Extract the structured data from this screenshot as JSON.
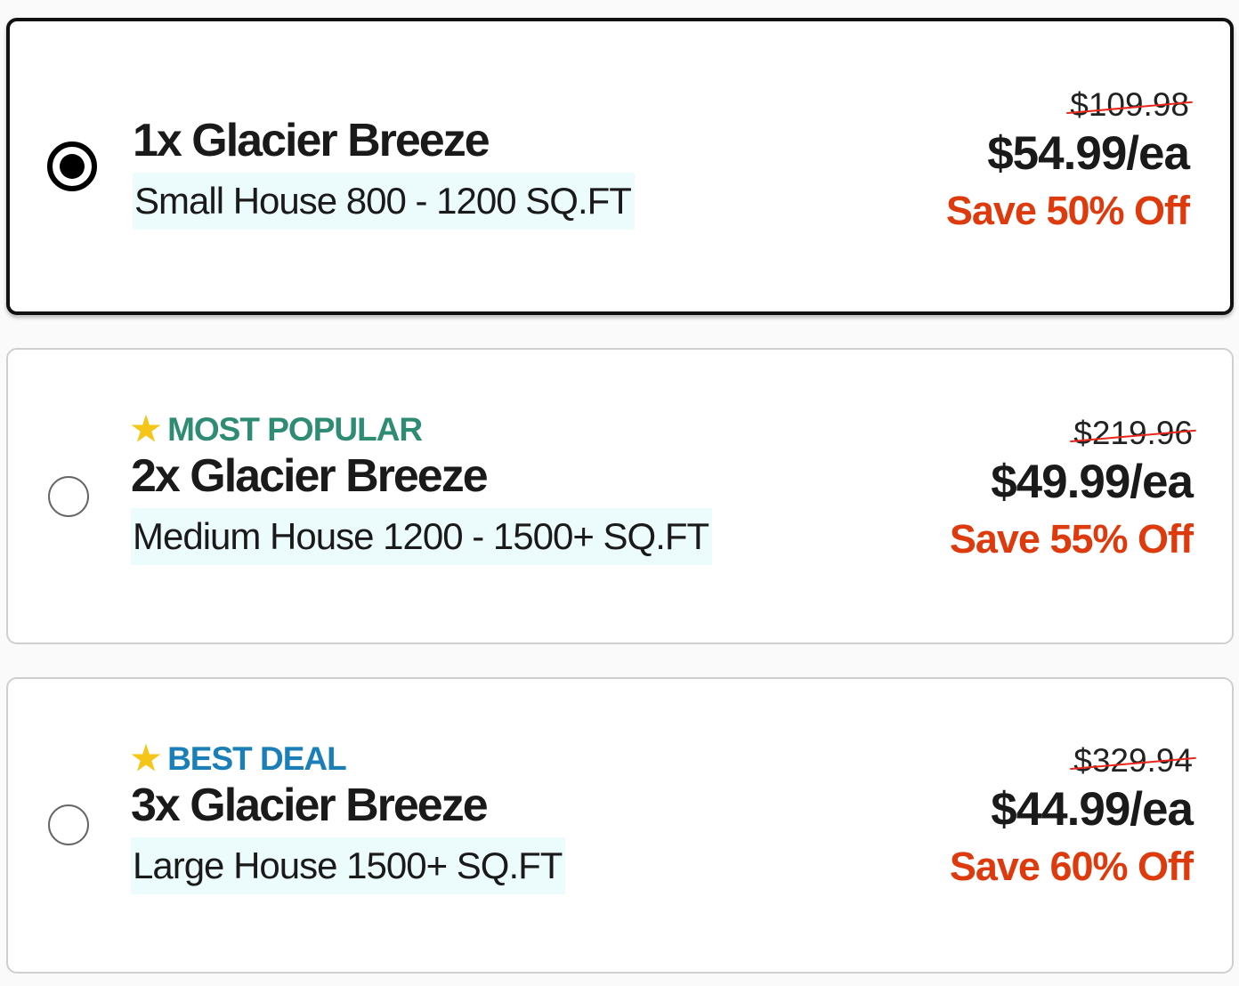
{
  "options": [
    {
      "badge": "",
      "badge_color": "",
      "title": "1x Glacier Breeze",
      "subtitle": "Small House 800 - 1200 SQ.FT",
      "old_price": "$109.98",
      "price": "$54.99/ea",
      "save": "Save 50% Off",
      "selected": true
    },
    {
      "badge": "MOST POPULAR",
      "badge_color": "#2e8b74",
      "title": "2x Glacier Breeze",
      "subtitle": "Medium House 1200 - 1500+ SQ.FT",
      "old_price": "$219.96",
      "price": "$49.99/ea",
      "save": "Save 55% Off",
      "selected": false
    },
    {
      "badge": "BEST DEAL",
      "badge_color": "#1a7fb8",
      "title": "3x Glacier Breeze",
      "subtitle": "Large House 1500+ SQ.FT",
      "old_price": "$329.94",
      "price": "$44.99/ea",
      "save": "Save 60% Off",
      "selected": false
    }
  ],
  "colors": {
    "save": "#dd3a0e",
    "strike": "#e8261b",
    "subtitle_bg": "#ecfbfc",
    "star": "#f5c518"
  }
}
